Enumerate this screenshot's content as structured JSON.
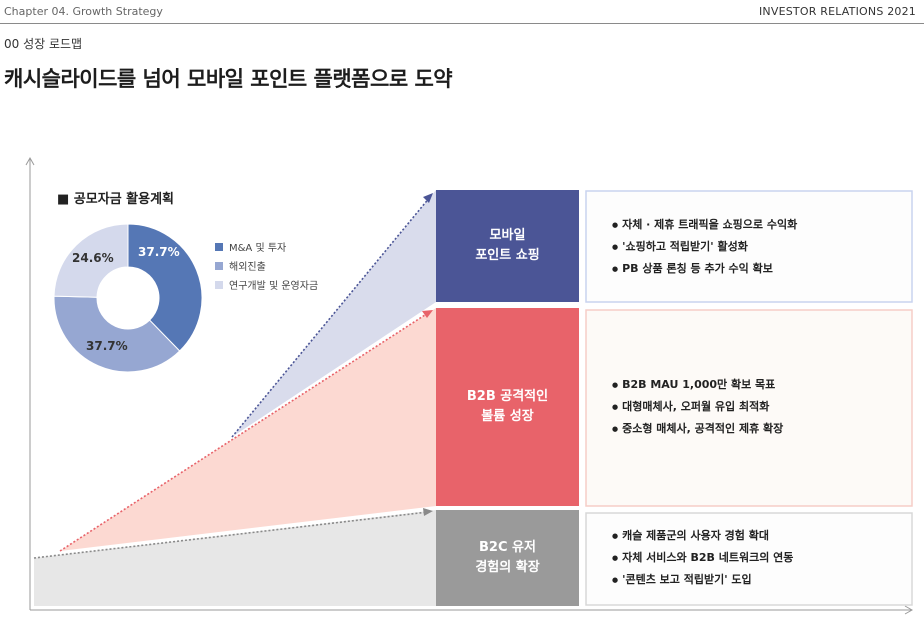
{
  "header": {
    "chapter": "Chapter 04. Growth Strategy",
    "report": "INVESTOR RELATIONS 2021"
  },
  "section": "00  성장 로드맵",
  "title": "캐시슬라이드를 넘어 모바일 포인트 플랫폼으로 도약",
  "funding": {
    "title": "■ 공모자금 활용계획",
    "slices": [
      {
        "label": "M&A 및 투자",
        "value": 37.7,
        "display": "37.7%",
        "color": "#5577b5"
      },
      {
        "label": "해외진출",
        "value": 37.7,
        "display": "37.7%",
        "color": "#96a7d2"
      },
      {
        "label": "연구개발 및 운영자금",
        "value": 24.6,
        "display": "24.6%",
        "color": "#d4d9ec"
      }
    ]
  },
  "stages": [
    {
      "name": "모바일\n포인트 쇼핑",
      "color": "#4b5596",
      "bullets": [
        "자체 · 제휴 트래픽을 쇼핑으로 수익화",
        "'쇼핑하고 적립받기' 활성화",
        "PB 상품 론칭 등 추가 수익 확보"
      ]
    },
    {
      "name": "B2B 공격적인\n볼륨 성장",
      "color": "#e8636a",
      "bullets": [
        "B2B MAU 1,000만 확보 목표",
        "대형매체사, 오퍼월 유입 최적화",
        "중소형 매체사, 공격적인 제휴 확장"
      ]
    },
    {
      "name": "B2C 유저\n경험의 확장",
      "color": "#9a9a9a",
      "bullets": [
        "캐슬 제품군의 사용자 경험 확대",
        "자체 서비스와 B2B 네트워크의 연동",
        "'콘텐츠 보고 적립받기' 도입"
      ]
    }
  ]
}
